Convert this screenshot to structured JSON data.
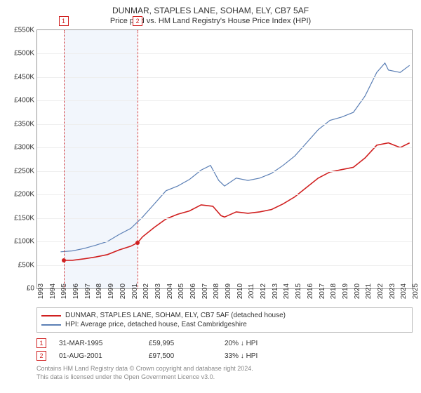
{
  "title": "DUNMAR, STAPLES LANE, SOHAM, ELY, CB7 5AF",
  "subtitle": "Price paid vs. HM Land Registry's House Price Index (HPI)",
  "chart": {
    "type": "line",
    "x_range": [
      1993,
      2025
    ],
    "y_range": [
      0,
      550000
    ],
    "y_tick_step": 50000,
    "y_tick_format": "£{k}K",
    "x_ticks": [
      1993,
      1994,
      1995,
      1996,
      1997,
      1998,
      1999,
      2000,
      2001,
      2002,
      2003,
      2004,
      2005,
      2006,
      2007,
      2008,
      2009,
      2010,
      2011,
      2012,
      2013,
      2014,
      2015,
      2016,
      2017,
      2018,
      2019,
      2020,
      2021,
      2022,
      2023,
      2024,
      2025
    ],
    "background_color": "#ffffff",
    "grid_color": "#eeeeee",
    "axis_color": "#999999",
    "band_color": "#f2f6fc",
    "series": [
      {
        "id": "property",
        "label": "DUNMAR, STAPLES LANE, SOHAM, ELY, CB7 5AF (detached house)",
        "color": "#d02020",
        "width": 1.6,
        "data": [
          [
            1995.25,
            60000
          ],
          [
            1996.0,
            60000
          ],
          [
            1997.0,
            63000
          ],
          [
            1998.0,
            67000
          ],
          [
            1999.0,
            72000
          ],
          [
            2000.0,
            82000
          ],
          [
            2001.0,
            90000
          ],
          [
            2001.58,
            97500
          ],
          [
            2002.0,
            110000
          ],
          [
            2003.0,
            130000
          ],
          [
            2004.0,
            148000
          ],
          [
            2005.0,
            158000
          ],
          [
            2006.0,
            165000
          ],
          [
            2007.0,
            178000
          ],
          [
            2008.0,
            175000
          ],
          [
            2008.7,
            155000
          ],
          [
            2009.0,
            152000
          ],
          [
            2010.0,
            163000
          ],
          [
            2011.0,
            160000
          ],
          [
            2012.0,
            163000
          ],
          [
            2013.0,
            168000
          ],
          [
            2014.0,
            180000
          ],
          [
            2015.0,
            195000
          ],
          [
            2016.0,
            215000
          ],
          [
            2017.0,
            235000
          ],
          [
            2018.0,
            248000
          ],
          [
            2019.0,
            253000
          ],
          [
            2020.0,
            258000
          ],
          [
            2021.0,
            278000
          ],
          [
            2022.0,
            305000
          ],
          [
            2023.0,
            310000
          ],
          [
            2024.0,
            300000
          ],
          [
            2024.8,
            310000
          ]
        ]
      },
      {
        "id": "hpi",
        "label": "HPI: Average price, detached house, East Cambridgeshire",
        "color": "#5b7fb5",
        "width": 1.2,
        "data": [
          [
            1995.0,
            78000
          ],
          [
            1996.0,
            80000
          ],
          [
            1997.0,
            85000
          ],
          [
            1998.0,
            92000
          ],
          [
            1999.0,
            100000
          ],
          [
            2000.0,
            115000
          ],
          [
            2001.0,
            128000
          ],
          [
            2002.0,
            152000
          ],
          [
            2003.0,
            180000
          ],
          [
            2004.0,
            208000
          ],
          [
            2005.0,
            218000
          ],
          [
            2006.0,
            232000
          ],
          [
            2007.0,
            252000
          ],
          [
            2007.8,
            262000
          ],
          [
            2008.5,
            230000
          ],
          [
            2009.0,
            218000
          ],
          [
            2010.0,
            235000
          ],
          [
            2011.0,
            230000
          ],
          [
            2012.0,
            235000
          ],
          [
            2013.0,
            245000
          ],
          [
            2014.0,
            262000
          ],
          [
            2015.0,
            282000
          ],
          [
            2016.0,
            310000
          ],
          [
            2017.0,
            338000
          ],
          [
            2018.0,
            358000
          ],
          [
            2019.0,
            365000
          ],
          [
            2020.0,
            375000
          ],
          [
            2021.0,
            410000
          ],
          [
            2022.0,
            460000
          ],
          [
            2022.7,
            480000
          ],
          [
            2023.0,
            465000
          ],
          [
            2024.0,
            460000
          ],
          [
            2024.8,
            475000
          ]
        ]
      }
    ],
    "sale_markers": [
      {
        "n": "1",
        "x": 1995.25,
        "y": 59995
      },
      {
        "n": "2",
        "x": 2001.58,
        "y": 97500
      }
    ]
  },
  "legend": {
    "items": [
      {
        "color": "#d02020",
        "label": "DUNMAR, STAPLES LANE, SOHAM, ELY, CB7 5AF (detached house)"
      },
      {
        "color": "#5b7fb5",
        "label": "HPI: Average price, detached house, East Cambridgeshire"
      }
    ]
  },
  "sales": [
    {
      "n": "1",
      "date": "31-MAR-1995",
      "price": "£59,995",
      "delta": "20% ↓ HPI"
    },
    {
      "n": "2",
      "date": "01-AUG-2001",
      "price": "£97,500",
      "delta": "33% ↓ HPI"
    }
  ],
  "footer": {
    "line1": "Contains HM Land Registry data © Crown copyright and database right 2024.",
    "line2": "This data is licensed under the Open Government Licence v3.0."
  }
}
